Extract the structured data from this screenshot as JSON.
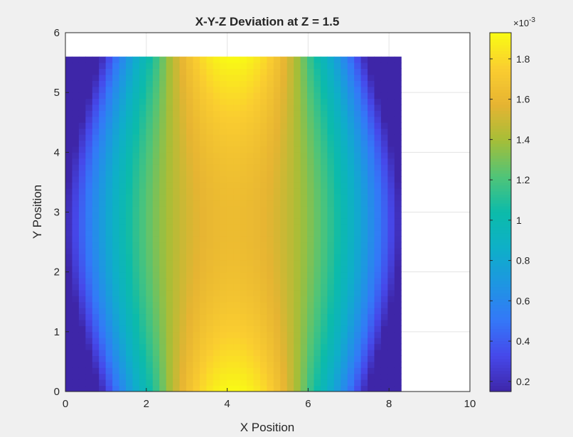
{
  "chart_data": {
    "type": "heatmap",
    "title": "X-Y-Z Deviation at Z = 1.5",
    "xlabel": "X Position",
    "ylabel": "Y Position",
    "xlim": [
      0,
      10
    ],
    "ylim": [
      0,
      6
    ],
    "xticks": [
      "0",
      "2",
      "4",
      "6",
      "8",
      "10"
    ],
    "yticks": [
      "0",
      "1",
      "2",
      "3",
      "4",
      "5",
      "6"
    ],
    "grid": true,
    "colormap": "parula",
    "data_extent": {
      "x": [
        0,
        8.3
      ],
      "y": [
        0,
        5.6
      ]
    },
    "center": {
      "x": 4.15,
      "y": 2.8
    },
    "peak_value": 0.00193,
    "center_value": 0.00163,
    "corner_value": 0.00015,
    "colorbar": {
      "range": [
        0.00015,
        0.00193
      ],
      "ticks": [
        "0.2",
        "0.4",
        "0.6",
        "0.8",
        "1",
        "1.2",
        "1.4",
        "1.6",
        "1.8"
      ],
      "tick_values": [
        0.2,
        0.4,
        0.6,
        0.8,
        1.0,
        1.2,
        1.4,
        1.6,
        1.8
      ],
      "exponent_base": "×10",
      "exponent_power": "-3"
    }
  }
}
